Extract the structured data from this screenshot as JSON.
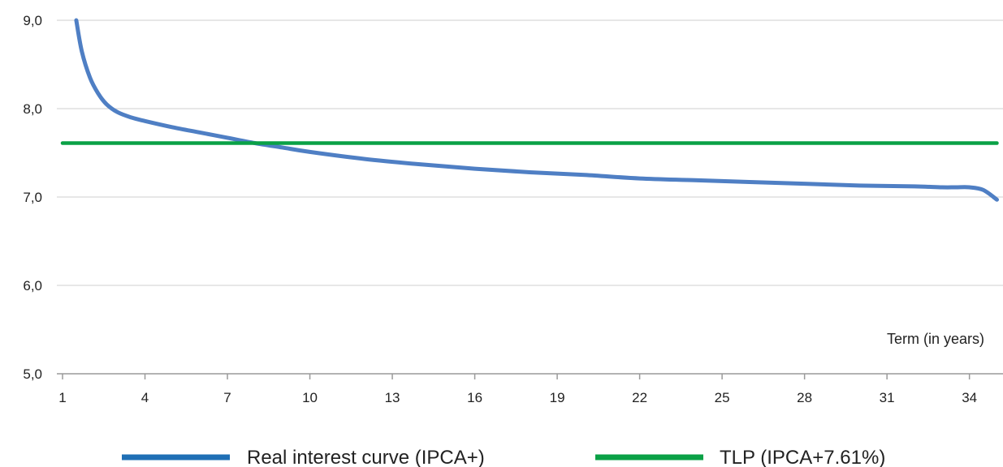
{
  "chart_data": {
    "type": "line",
    "title": "",
    "xlabel": "Term (in years)",
    "ylabel": "",
    "xlim": [
      1,
      35
    ],
    "ylim": [
      5,
      9
    ],
    "x_ticks": [
      "1",
      "4",
      "7",
      "10",
      "13",
      "16",
      "19",
      "22",
      "25",
      "28",
      "31",
      "34"
    ],
    "y_ticks": [
      "9,0",
      "8,0",
      "7,0",
      "6,0",
      "5,0"
    ],
    "y_tick_values": [
      9,
      8,
      7,
      6,
      5
    ],
    "grid": "horizontal",
    "legend_position": "bottom",
    "series": [
      {
        "name": "Real interest curve (IPCA+)",
        "color": "#4f7fc4",
        "legend_color": "#1f6fb5",
        "x": [
          1.5,
          1.7,
          2,
          2.3,
          2.6,
          3,
          3.5,
          4,
          5,
          6,
          7,
          8,
          9,
          10,
          12,
          14,
          16,
          18,
          20,
          22,
          24,
          26,
          28,
          30,
          32,
          33,
          33.5,
          34,
          34.5,
          35
        ],
        "y": [
          9.0,
          8.65,
          8.35,
          8.17,
          8.05,
          7.96,
          7.9,
          7.86,
          7.79,
          7.73,
          7.67,
          7.61,
          7.56,
          7.51,
          7.43,
          7.37,
          7.32,
          7.28,
          7.25,
          7.21,
          7.19,
          7.17,
          7.15,
          7.13,
          7.12,
          7.11,
          7.11,
          7.11,
          7.08,
          6.97
        ]
      },
      {
        "name": "TLP (IPCA+7.61%)",
        "color": "#0aa146",
        "legend_color": "#0aa146",
        "x": [
          1,
          35
        ],
        "y": [
          7.61,
          7.61
        ]
      }
    ]
  }
}
